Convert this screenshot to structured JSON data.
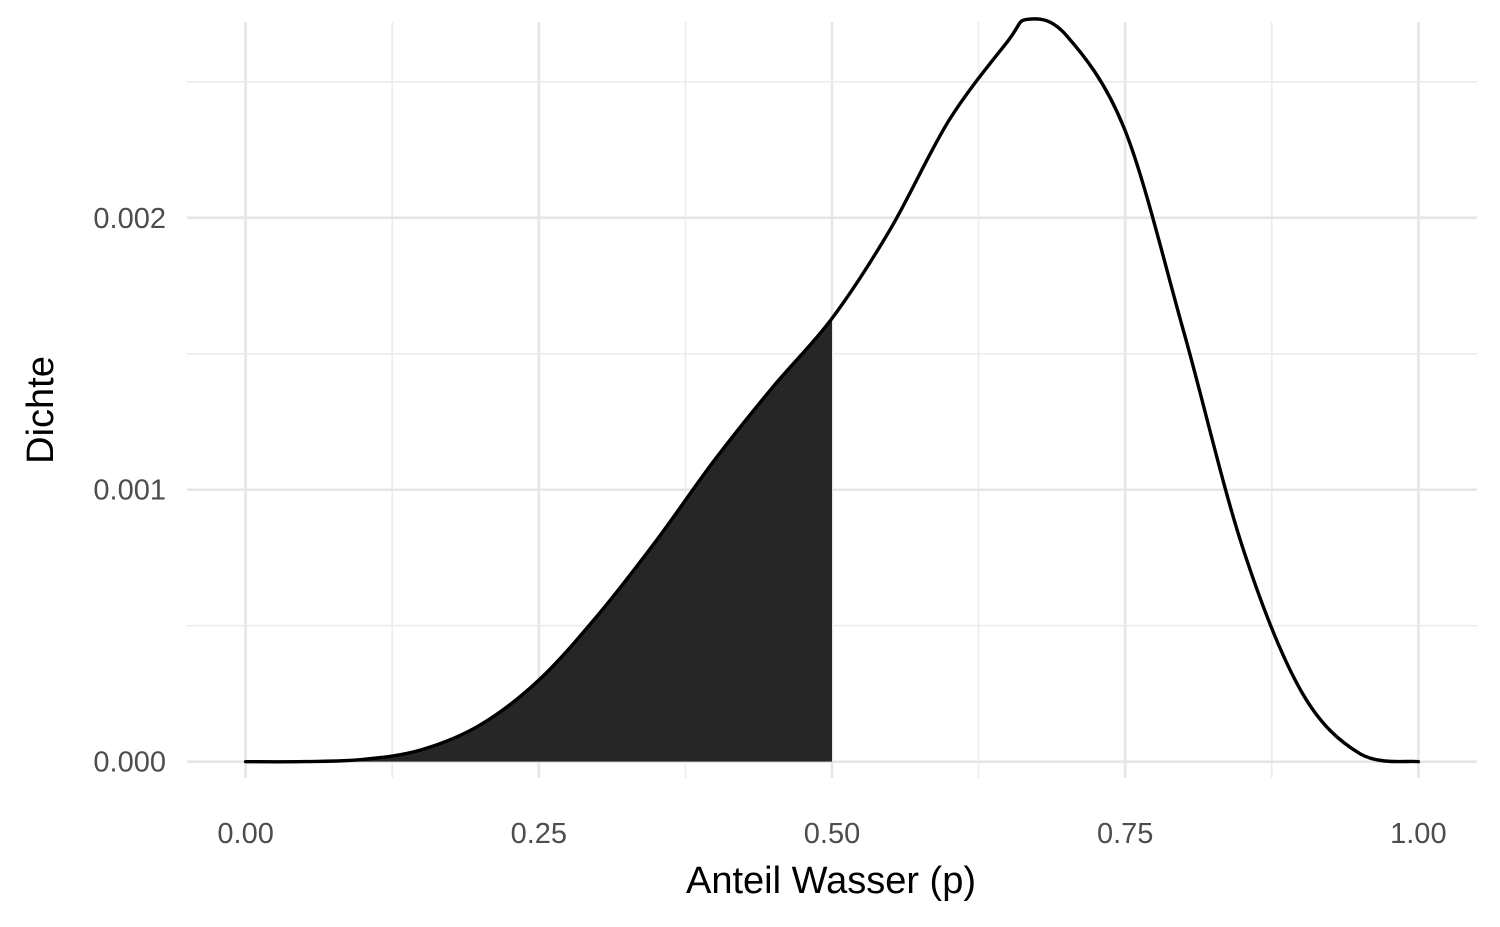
{
  "chart_data": {
    "type": "area",
    "title": "",
    "xlabel": "Anteil Wasser (p)",
    "ylabel": "Dichte",
    "xlim": [
      -0.05,
      1.05
    ],
    "ylim": [
      -6e-05,
      0.00272
    ],
    "x_ticks": [
      0,
      0.25,
      0.5,
      0.75,
      1
    ],
    "x_tick_labels": [
      "0.00",
      "0.25",
      "0.50",
      "0.75",
      "1.00"
    ],
    "y_ticks": [
      0,
      0.001,
      0.002
    ],
    "y_tick_labels": [
      "0.000",
      "0.001",
      "0.002"
    ],
    "grid": true,
    "legend": "none",
    "series": [
      {
        "role": "density-curve",
        "color": "#000000",
        "x": [
          0,
          0.05,
          0.1,
          0.15,
          0.2,
          0.25,
          0.3,
          0.35,
          0.4,
          0.45,
          0.5,
          0.55,
          0.6,
          0.65,
          0.6667,
          0.7,
          0.75,
          0.8,
          0.85,
          0.9,
          0.95,
          1
        ],
        "y": [
          0,
          3.4e-07,
          8.1e-06,
          4.4e-05,
          0.000135,
          0.0003,
          0.000537,
          0.000812,
          0.00111,
          0.00138,
          0.00163,
          0.00196,
          0.00236,
          0.00265,
          0.00273,
          0.00267,
          0.00232,
          0.00158,
          0.00079,
          0.00026,
          3e-05,
          0
        ]
      }
    ],
    "shaded_region": {
      "x_from": 0,
      "x_to": 0.5,
      "color": "#262626"
    }
  }
}
